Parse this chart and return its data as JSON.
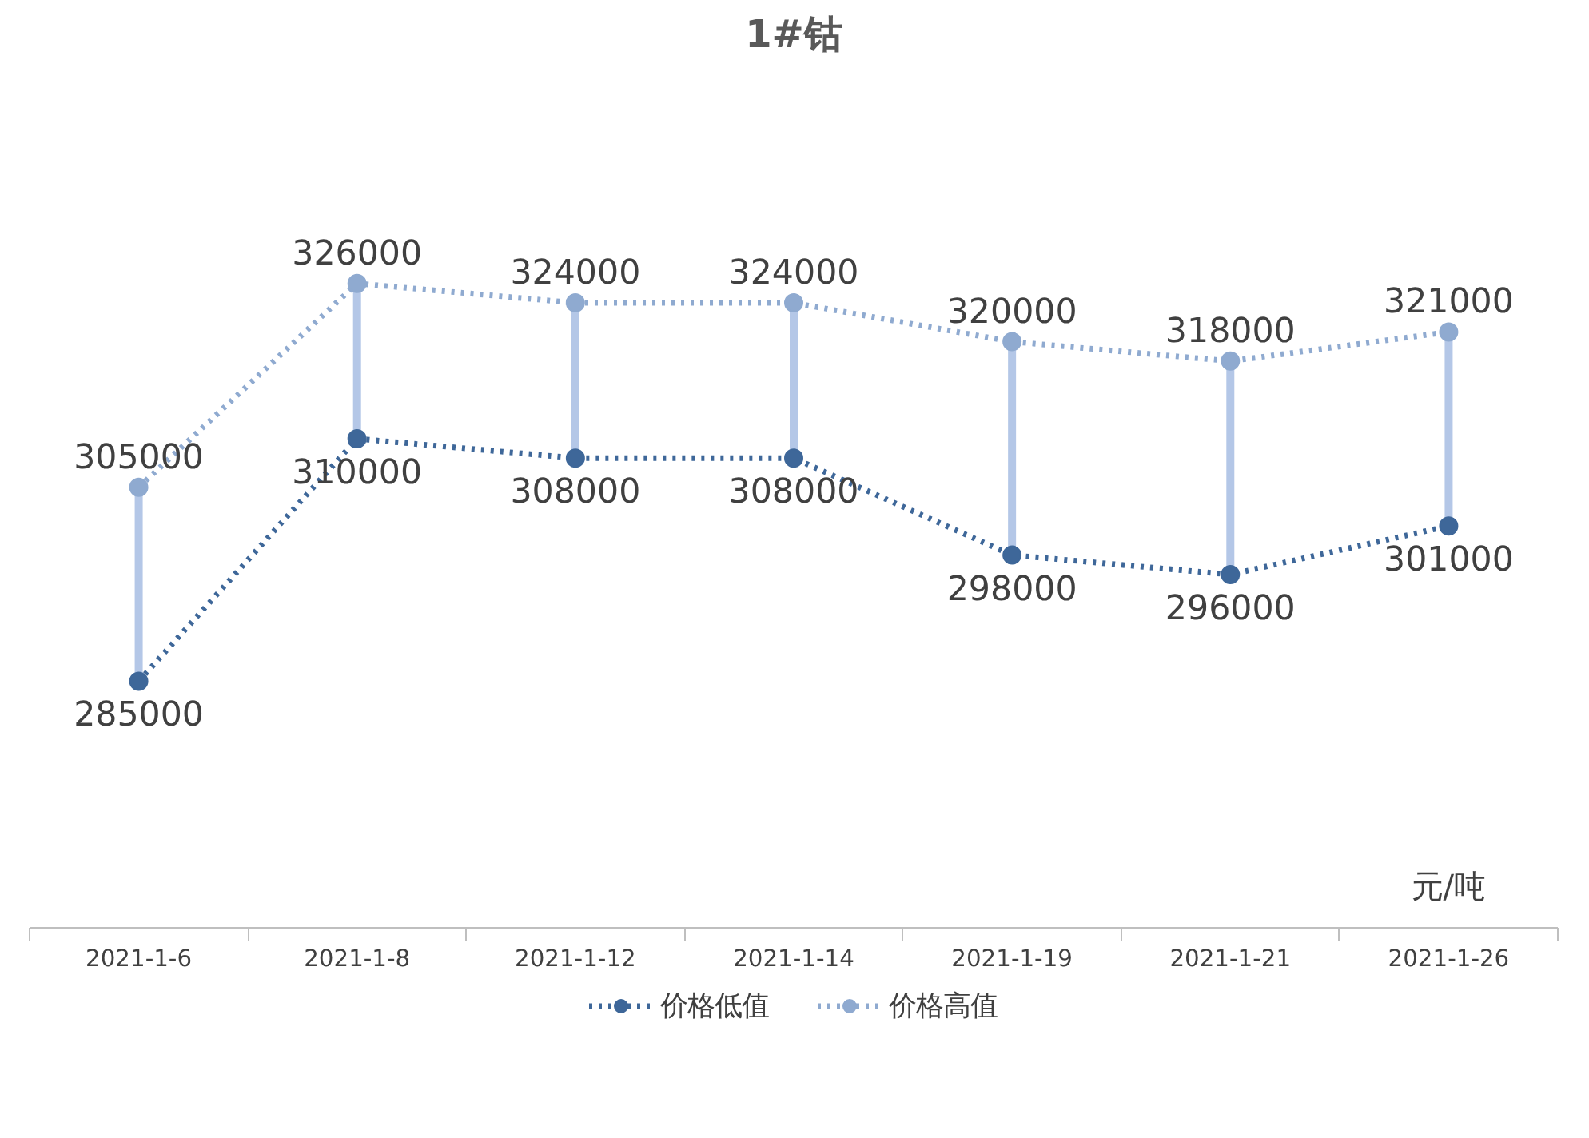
{
  "chart_data": {
    "type": "line",
    "title": "1#钴",
    "annotations": [
      "元/吨"
    ],
    "categories": [
      "2021-1-6",
      "2021-1-8",
      "2021-1-12",
      "2021-1-14",
      "2021-1-19",
      "2021-1-21",
      "2021-1-26"
    ],
    "series": [
      {
        "name": "价格低值",
        "color": "#3e6799",
        "values": [
          285000,
          310000,
          308000,
          308000,
          298000,
          296000,
          301000
        ]
      },
      {
        "name": "价格高值",
        "color": "#8faad0",
        "values": [
          305000,
          326000,
          324000,
          324000,
          320000,
          318000,
          321000
        ]
      }
    ],
    "data_labels": true,
    "marker": "circle",
    "line_style": "dotted",
    "legend": "bottom",
    "grid": false
  }
}
